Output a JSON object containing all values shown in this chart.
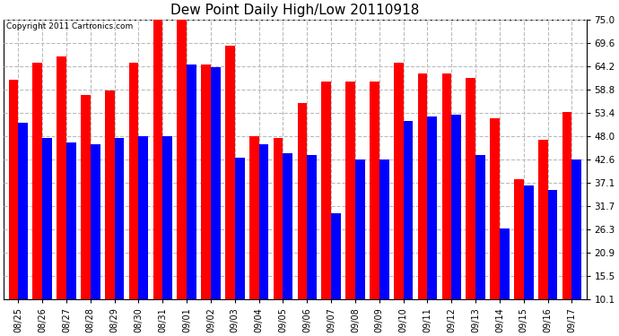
{
  "title": "Dew Point Daily High/Low 20110918",
  "copyright": "Copyright 2011 Cartronics.com",
  "dates": [
    "08/25",
    "08/26",
    "08/27",
    "08/28",
    "08/29",
    "08/30",
    "08/31",
    "09/01",
    "09/02",
    "09/03",
    "09/04",
    "09/05",
    "09/06",
    "09/07",
    "09/08",
    "09/09",
    "09/10",
    "09/11",
    "09/12",
    "09/13",
    "09/14",
    "09/15",
    "09/16",
    "09/17"
  ],
  "highs": [
    61.0,
    65.0,
    66.5,
    57.5,
    58.5,
    65.0,
    75.0,
    75.0,
    64.5,
    69.0,
    48.0,
    47.5,
    55.5,
    60.5,
    60.5,
    60.5,
    65.0,
    62.5,
    62.5,
    61.5,
    52.0,
    38.0,
    47.0,
    53.5
  ],
  "lows": [
    51.0,
    47.5,
    46.5,
    46.0,
    47.5,
    48.0,
    48.0,
    64.5,
    64.0,
    43.0,
    46.0,
    44.0,
    43.5,
    30.0,
    42.5,
    42.5,
    51.5,
    52.5,
    53.0,
    43.5,
    26.5,
    36.5,
    35.5,
    42.5
  ],
  "high_color": "#ff0000",
  "low_color": "#0000ff",
  "bg_color": "#ffffff",
  "grid_color": "#bbbbbb",
  "yticks": [
    10.1,
    15.5,
    20.9,
    26.3,
    31.7,
    37.1,
    42.6,
    48.0,
    53.4,
    58.8,
    64.2,
    69.6,
    75.0
  ],
  "ymin": 10.1,
  "ymax": 75.0,
  "bar_width": 0.4,
  "figsize": [
    6.9,
    3.75
  ],
  "dpi": 100
}
